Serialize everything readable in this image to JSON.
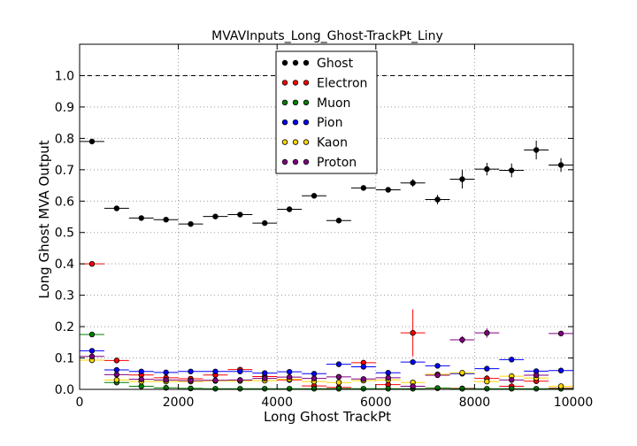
{
  "chart_data": {
    "type": "scatter",
    "title": "MVAVInputs_Long_Ghost-TrackPt_Liny",
    "xlabel": "Long Ghost TrackPt",
    "ylabel": "Long Ghost MVA Output",
    "xlim": [
      0,
      10000
    ],
    "ylim": [
      0,
      1.1
    ],
    "xticks": [
      "0",
      "2000",
      "4000",
      "6000",
      "8000",
      "10000"
    ],
    "yticks": [
      "0.0",
      "0.1",
      "0.2",
      "0.3",
      "0.4",
      "0.5",
      "0.6",
      "0.7",
      "0.8",
      "0.9",
      "1.0"
    ],
    "grid": true,
    "reference_line": 1.0,
    "legend_position": "top-center",
    "bin_half_width": 250,
    "x": [
      250,
      750,
      1250,
      1750,
      2250,
      2750,
      3250,
      3750,
      4250,
      4750,
      5250,
      5750,
      6250,
      6750,
      7250,
      7750,
      8250,
      8750,
      9250,
      9750
    ],
    "series": [
      {
        "name": "Ghost",
        "color": "#000000",
        "values": [
          0.79,
          0.577,
          0.546,
          0.541,
          0.527,
          0.551,
          0.557,
          0.53,
          0.574,
          0.617,
          0.538,
          0.642,
          0.636,
          0.658,
          0.605,
          0.67,
          0.702,
          0.698,
          0.763,
          0.715
        ],
        "errors": [
          0.004,
          0.004,
          0.004,
          0.004,
          0.004,
          0.004,
          0.004,
          0.004,
          0.004,
          0.005,
          0.004,
          0.007,
          0.008,
          0.012,
          0.015,
          0.03,
          0.02,
          0.022,
          0.03,
          0.022
        ]
      },
      {
        "name": "Electron",
        "color": "#ff0000",
        "values": [
          0.4,
          0.092,
          0.046,
          0.037,
          0.034,
          0.046,
          0.063,
          0.041,
          0.03,
          0.011,
          0.006,
          0.085,
          0.015,
          0.18,
          0.004,
          0.003,
          0.035,
          0.01,
          0.026,
          0.004
        ],
        "errors": [
          0.002,
          0.002,
          0.002,
          0.002,
          0.002,
          0.003,
          0.003,
          0.003,
          0.003,
          0.004,
          0.004,
          0.006,
          0.008,
          0.075,
          0.003,
          0.003,
          0.01,
          0.004,
          0.006,
          0.003
        ]
      },
      {
        "name": "Muon",
        "color": "#008000",
        "values": [
          0.175,
          0.022,
          0.01,
          0.005,
          0.003,
          0.002,
          0.002,
          0.002,
          0.002,
          0.002,
          0.002,
          0.002,
          0.002,
          0.002,
          0.004,
          0.002,
          0.002,
          0.002,
          0.002,
          0.002
        ],
        "errors": [
          0.002,
          0.001,
          0.001,
          0.001,
          0.001,
          0.001,
          0.001,
          0.001,
          0.001,
          0.001,
          0.001,
          0.001,
          0.001,
          0.001,
          0.001,
          0.001,
          0.001,
          0.001,
          0.001,
          0.001
        ]
      },
      {
        "name": "Pion",
        "color": "#0000ff",
        "values": [
          0.123,
          0.062,
          0.057,
          0.054,
          0.057,
          0.057,
          0.057,
          0.052,
          0.056,
          0.05,
          0.08,
          0.072,
          0.053,
          0.087,
          0.075,
          0.05,
          0.066,
          0.095,
          0.058,
          0.06
        ],
        "errors": [
          0.002,
          0.002,
          0.002,
          0.002,
          0.002,
          0.002,
          0.002,
          0.002,
          0.002,
          0.002,
          0.003,
          0.003,
          0.003,
          0.004,
          0.004,
          0.004,
          0.005,
          0.005,
          0.006,
          0.005
        ]
      },
      {
        "name": "Kaon",
        "color": "#ffd700",
        "values": [
          0.093,
          0.03,
          0.025,
          0.025,
          0.025,
          0.027,
          0.027,
          0.028,
          0.032,
          0.025,
          0.022,
          0.028,
          0.03,
          0.022,
          0.048,
          0.053,
          0.025,
          0.042,
          0.036,
          0.01
        ],
        "errors": [
          0.002,
          0.002,
          0.002,
          0.002,
          0.002,
          0.002,
          0.002,
          0.002,
          0.002,
          0.002,
          0.003,
          0.003,
          0.004,
          0.004,
          0.005,
          0.006,
          0.006,
          0.006,
          0.008,
          0.004
        ]
      },
      {
        "name": "Proton",
        "color": "#800080",
        "values": [
          0.105,
          0.047,
          0.032,
          0.03,
          0.028,
          0.029,
          0.03,
          0.035,
          0.039,
          0.035,
          0.04,
          0.033,
          0.037,
          0.01,
          0.045,
          0.158,
          0.18,
          0.03,
          0.045,
          0.178
        ],
        "errors": [
          0.002,
          0.002,
          0.002,
          0.002,
          0.002,
          0.002,
          0.002,
          0.002,
          0.002,
          0.003,
          0.003,
          0.003,
          0.004,
          0.004,
          0.005,
          0.012,
          0.015,
          0.006,
          0.006,
          0.003
        ]
      }
    ]
  }
}
